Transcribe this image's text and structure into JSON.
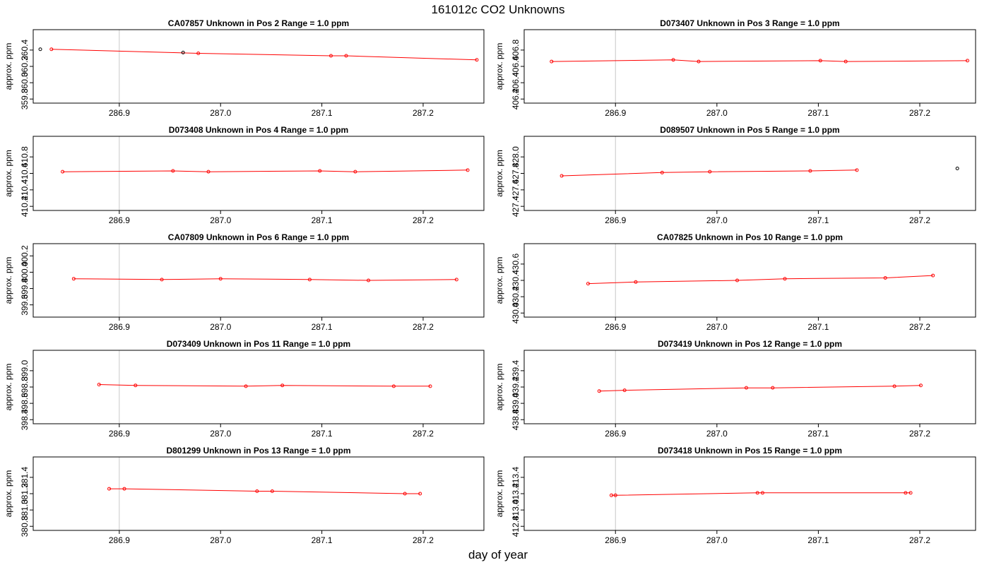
{
  "title": "161012c  CO2 Unknowns",
  "xlabel": "day of year",
  "chart_data": [
    {
      "type": "line",
      "title": "CA07857    Unknown in Pos 2         Range = 1.0 ppm",
      "ylabel": "approx. ppm",
      "xlim": [
        286.815,
        287.26
      ],
      "ylim": [
        359.75,
        360.65
      ],
      "x_ticks": [
        "286.9",
        "287.0",
        "287.1",
        "287.2"
      ],
      "y_ticks": [
        "359.8",
        "360.0",
        "360.2",
        "360.4"
      ],
      "vlines": [
        286.9,
        287.26
      ],
      "x": [
        286.833,
        286.978,
        287.109,
        287.124,
        287.253
      ],
      "y": [
        360.41,
        360.36,
        360.33,
        360.33,
        360.28
      ],
      "extra_points": [
        {
          "x": 286.822,
          "y": 360.41
        },
        {
          "x": 286.963,
          "y": 360.37
        }
      ]
    },
    {
      "type": "line",
      "title": "D073407    Unknown in Pos 3         Range = 1.0 ppm",
      "ylabel": "approx. ppm",
      "xlim": [
        286.81,
        287.255
      ],
      "ylim": [
        406.15,
        407.05
      ],
      "x_ticks": [
        "286.9",
        "287.0",
        "287.1",
        "287.2"
      ],
      "y_ticks": [
        "406.2",
        "406.4",
        "406.6",
        "406.8"
      ],
      "vlines": [
        286.9,
        287.255
      ],
      "x": [
        286.837,
        286.957,
        286.982,
        287.102,
        287.127,
        287.247
      ],
      "y": [
        406.66,
        406.68,
        406.66,
        406.67,
        406.66,
        406.67
      ]
    },
    {
      "type": "line",
      "title": "D073408    Unknown in Pos 4         Range = 1.0 ppm",
      "ylabel": "approx. ppm",
      "xlim": [
        286.815,
        287.26
      ],
      "ylim": [
        410.15,
        411.05
      ],
      "x_ticks": [
        "286.9",
        "287.0",
        "287.1",
        "287.2"
      ],
      "y_ticks": [
        "410.2",
        "410.4",
        "410.6",
        "410.8"
      ],
      "vlines": [
        286.9,
        287.26
      ],
      "x": [
        286.844,
        286.953,
        286.988,
        287.098,
        287.133,
        287.244
      ],
      "y": [
        410.62,
        410.63,
        410.62,
        410.63,
        410.62,
        410.64
      ]
    },
    {
      "type": "line",
      "title": "D089507    Unknown in Pos 5         Range = 1.0 ppm",
      "ylabel": "approx. ppm",
      "xlim": [
        286.81,
        287.255
      ],
      "ylim": [
        427.35,
        428.25
      ],
      "x_ticks": [
        "286.9",
        "287.0",
        "287.1",
        "287.2"
      ],
      "y_ticks": [
        "427.4",
        "427.6",
        "427.8",
        "428.0"
      ],
      "vlines": [
        286.9,
        287.255
      ],
      "x": [
        286.847,
        286.946,
        286.993,
        287.092,
        287.138
      ],
      "y": [
        427.77,
        427.81,
        427.82,
        427.83,
        427.84
      ],
      "extra_points": [
        {
          "x": 287.237,
          "y": 427.86
        }
      ]
    },
    {
      "type": "line",
      "title": "CA07809    Unknown in Pos 6         Range = 1.0 ppm",
      "ylabel": "approx. ppm",
      "xlim": [
        286.815,
        287.26
      ],
      "ylim": [
        399.45,
        400.35
      ],
      "x_ticks": [
        "286.9",
        "287.0",
        "287.1",
        "287.2"
      ],
      "y_ticks": [
        "399.6",
        "399.8",
        "400.0",
        "400.2"
      ],
      "vlines": [
        286.9,
        287.26
      ],
      "x": [
        286.855,
        286.942,
        287.0,
        287.088,
        287.146,
        287.233
      ],
      "y": [
        399.92,
        399.91,
        399.92,
        399.91,
        399.9,
        399.91
      ]
    },
    {
      "type": "line",
      "title": "CA07825    Unknown in Pos 10         Range = 1.0 ppm",
      "ylabel": "approx. ppm",
      "xlim": [
        286.81,
        287.255
      ],
      "ylim": [
        429.95,
        430.85
      ],
      "x_ticks": [
        "286.9",
        "287.0",
        "287.1",
        "287.2"
      ],
      "y_ticks": [
        "430.0",
        "430.2",
        "430.4",
        "430.6"
      ],
      "vlines": [
        286.9,
        287.255
      ],
      "x": [
        286.873,
        286.92,
        287.02,
        287.067,
        287.166,
        287.213
      ],
      "y": [
        430.36,
        430.38,
        430.4,
        430.42,
        430.43,
        430.46
      ]
    },
    {
      "type": "line",
      "title": "D073409    Unknown in Pos 11         Range = 1.0 ppm",
      "ylabel": "approx. ppm",
      "xlim": [
        286.815,
        287.26
      ],
      "ylim": [
        398.35,
        399.25
      ],
      "x_ticks": [
        "286.9",
        "287.0",
        "287.1",
        "287.2"
      ],
      "y_ticks": [
        "398.4",
        "398.6",
        "398.8",
        "399.0"
      ],
      "vlines": [
        286.9,
        287.26
      ],
      "x": [
        286.88,
        286.916,
        287.025,
        287.061,
        287.171,
        287.207
      ],
      "y": [
        398.83,
        398.82,
        398.81,
        398.82,
        398.81,
        398.81
      ]
    },
    {
      "type": "line",
      "title": "D073419    Unknown in Pos 12         Range = 1.0 ppm",
      "ylabel": "approx. ppm",
      "xlim": [
        286.81,
        287.255
      ],
      "ylim": [
        438.75,
        439.65
      ],
      "x_ticks": [
        "286.9",
        "287.0",
        "287.1",
        "287.2"
      ],
      "y_ticks": [
        "438.8",
        "439.0",
        "439.2",
        "439.4"
      ],
      "vlines": [
        286.9,
        287.255
      ],
      "x": [
        286.884,
        286.909,
        287.029,
        287.055,
        287.175,
        287.201
      ],
      "y": [
        439.15,
        439.16,
        439.19,
        439.19,
        439.21,
        439.22
      ]
    },
    {
      "type": "line",
      "title": "D801299    Unknown in Pos 13         Range = 1.0 ppm",
      "ylabel": "approx. ppm",
      "xlim": [
        286.815,
        287.26
      ],
      "ylim": [
        380.75,
        381.65
      ],
      "x_ticks": [
        "286.9",
        "287.0",
        "287.1",
        "287.2"
      ],
      "y_ticks": [
        "380.8",
        "381.0",
        "381.2",
        "381.4"
      ],
      "vlines": [
        286.9,
        287.26
      ],
      "x": [
        286.89,
        286.905,
        287.036,
        287.051,
        287.182,
        287.197
      ],
      "y": [
        381.26,
        381.26,
        381.23,
        381.23,
        381.2,
        381.2
      ]
    },
    {
      "type": "line",
      "title": "D073418    Unknown in Pos 15         Range = 1.0 ppm",
      "ylabel": "approx. ppm",
      "xlim": [
        286.81,
        287.255
      ],
      "ylim": [
        412.75,
        413.65
      ],
      "x_ticks": [
        "286.9",
        "287.0",
        "287.1",
        "287.2"
      ],
      "y_ticks": [
        "412.8",
        "413.0",
        "413.2",
        "413.4"
      ],
      "vlines": [
        286.9,
        287.255
      ],
      "x": [
        286.896,
        286.9,
        287.04,
        287.045,
        287.186,
        287.191
      ],
      "y": [
        413.18,
        413.18,
        413.21,
        413.21,
        413.21,
        413.21
      ]
    }
  ]
}
